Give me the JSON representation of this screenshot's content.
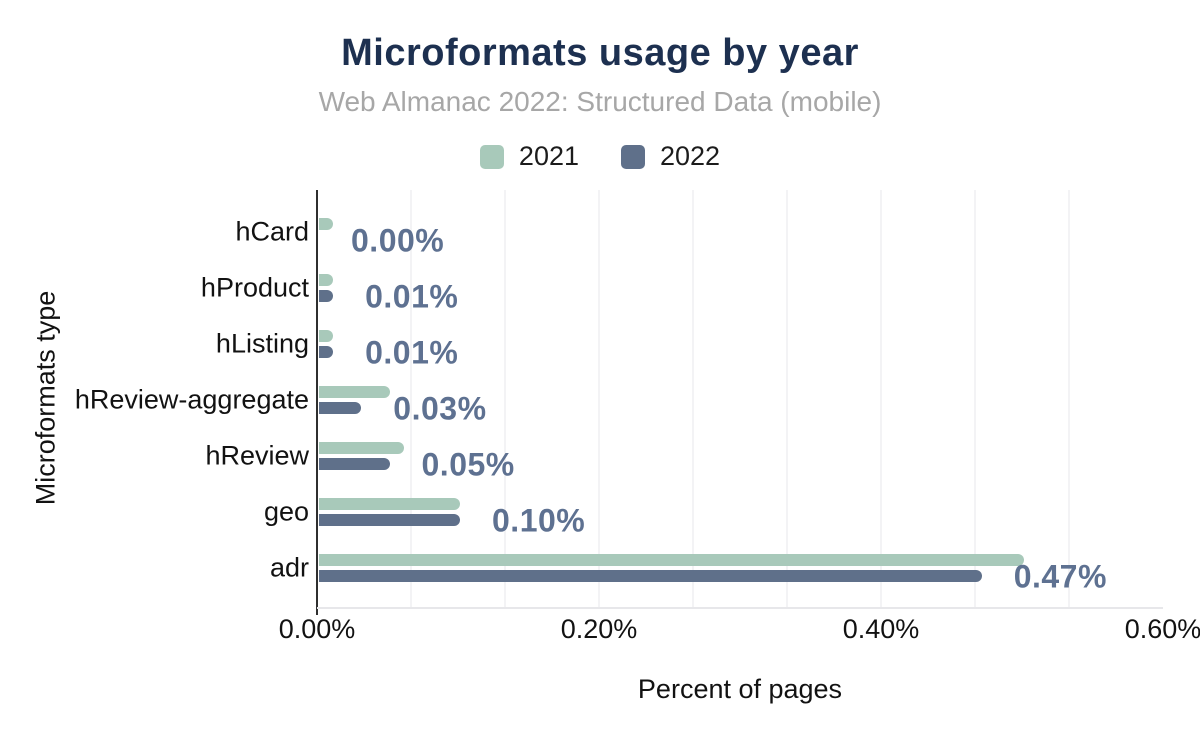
{
  "header": {
    "title": "Microformats usage by year",
    "subtitle": "Web Almanac 2022: Structured Data (mobile)"
  },
  "colors": {
    "title": "#1d3050",
    "subtitle": "#a7a7a7",
    "series_2021": "#a8c9ba",
    "series_2022": "#5f708a",
    "bar_value_label": "#5e7191",
    "axis_text": "#121212"
  },
  "chart_data": {
    "type": "bar",
    "orientation": "horizontal",
    "title": "Microformats usage by year",
    "subtitle": "Web Almanac 2022: Structured Data (mobile)",
    "xlabel": "Percent of pages",
    "ylabel": "Microformats type",
    "legend_position": "top",
    "grid": true,
    "categories": [
      "hCard",
      "hProduct",
      "hListing",
      "hReview-aggregate",
      "hReview",
      "geo",
      "adr"
    ],
    "series": [
      {
        "name": "2021",
        "color": "#a8c9ba",
        "values": [
          0.01,
          0.01,
          0.01,
          0.05,
          0.06,
          0.1,
          0.5
        ]
      },
      {
        "name": "2022",
        "color": "#5f708a",
        "values": [
          0.0,
          0.01,
          0.01,
          0.03,
          0.05,
          0.1,
          0.47
        ]
      }
    ],
    "bar_labels": [
      "0.00%",
      "0.01%",
      "0.01%",
      "0.03%",
      "0.05%",
      "0.10%",
      "0.47%"
    ],
    "bar_labels_refer_to": "2022",
    "xlim": [
      0,
      0.6
    ],
    "x_ticks": [
      {
        "value": 0.0,
        "label": "0.00%"
      },
      {
        "value": 0.2,
        "label": "0.20%"
      },
      {
        "value": 0.4,
        "label": "0.40%"
      },
      {
        "value": 0.6,
        "label": "0.60%"
      }
    ],
    "minor_gridline_step": 0.066667
  }
}
